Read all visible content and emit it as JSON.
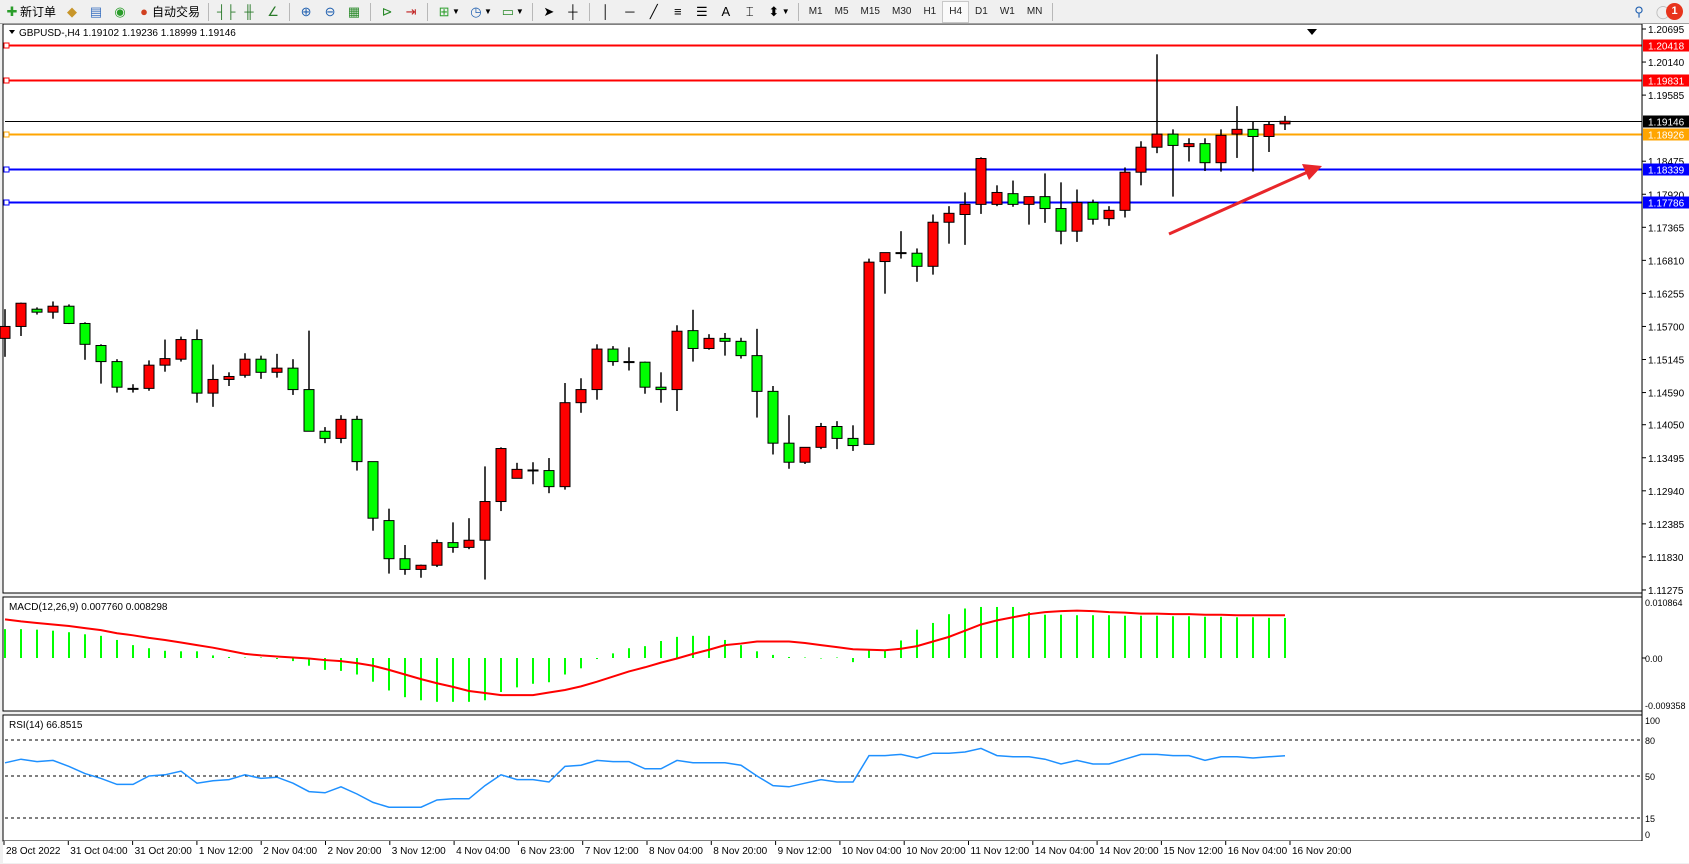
{
  "toolbar": {
    "new_order": "新订单",
    "auto_trading": "自动交易",
    "icons": [
      "new-order-icon",
      "market-watch-icon",
      "data-window-icon",
      "signals-icon",
      "auto-trading-icon",
      "bar-chart-icon",
      "candlestick-icon",
      "line-chart-icon",
      "zoom-in-icon",
      "zoom-out-icon",
      "tile-windows-icon",
      "chart-shift-icon",
      "autoscroll-icon",
      "indicators-icon",
      "periods-icon",
      "templates-icon",
      "cursor-icon",
      "crosshair-icon",
      "vertical-line-icon",
      "horizontal-line-icon",
      "trendline-icon",
      "fibonacci-icon",
      "fibo-fan-icon",
      "text-icon",
      "text-label-icon",
      "arrows-icon"
    ],
    "text_tool": "A",
    "timeframes": [
      "M1",
      "M5",
      "M15",
      "M30",
      "H1",
      "H4",
      "D1",
      "W1",
      "MN"
    ],
    "active_timeframe": "H4",
    "notification_count": "1"
  },
  "chart": {
    "header": "GBPUSD-,H4  1.19102 1.19236 1.18999 1.19146",
    "colors": {
      "bull": "#ff0000",
      "bear": "#00ff00",
      "outline": "#000000",
      "macd_hist": "#00ff00",
      "macd_signal": "#ff0000",
      "rsi": "#1e90ff"
    },
    "price_axis_labels": [
      "1.20695",
      "1.20140",
      "1.19585",
      "1.18475",
      "1.17920",
      "1.17365",
      "1.16810",
      "1.16255",
      "1.15700",
      "1.15145",
      "1.14590",
      "1.14050",
      "1.13495",
      "1.12940",
      "1.12385",
      "1.11830",
      "1.11275"
    ],
    "horizontal_lines": [
      {
        "price": "1.20418",
        "color": "#ff0000"
      },
      {
        "price": "1.19831",
        "color": "#ff0000"
      },
      {
        "price": "1.19146",
        "color": "#000000"
      },
      {
        "price": "1.18926",
        "color": "#ffa500"
      },
      {
        "price": "1.18339",
        "color": "#0000ff"
      },
      {
        "price": "1.17786",
        "color": "#0000ff"
      }
    ],
    "time_labels": [
      "28 Oct 2022",
      "31 Oct 04:00",
      "31 Oct 20:00",
      "1 Nov 12:00",
      "2 Nov 04:00",
      "2 Nov 20:00",
      "3 Nov 12:00",
      "4 Nov 04:00",
      "6 Nov 23:00",
      "7 Nov 12:00",
      "8 Nov 04:00",
      "8 Nov 20:00",
      "9 Nov 12:00",
      "10 Nov 04:00",
      "10 Nov 20:00",
      "11 Nov 12:00",
      "14 Nov 04:00",
      "14 Nov 20:00",
      "15 Nov 12:00",
      "16 Nov 04:00",
      "16 Nov 20:00"
    ]
  },
  "macd": {
    "label": "MACD(12,26,9) 0.007760 0.008298",
    "axis_labels": [
      "0.010864",
      "0.00",
      "-0.009358"
    ]
  },
  "rsi": {
    "label": "RSI(14) 66.8515",
    "axis_labels": [
      "100",
      "80",
      "50",
      "15",
      "0"
    ]
  },
  "chart_data": [
    {
      "type": "candlestick",
      "symbol": "GBPUSD-",
      "timeframe": "H4",
      "ylim": [
        1.11275,
        1.20695
      ],
      "ohlc": [
        [
          1.155,
          1.1599,
          1.1519,
          1.157
        ],
        [
          1.157,
          1.161,
          1.1554,
          1.1609
        ],
        [
          1.1599,
          1.1602,
          1.159,
          1.1594
        ],
        [
          1.1594,
          1.1612,
          1.1583,
          1.1604
        ],
        [
          1.1604,
          1.1607,
          1.1574,
          1.1575
        ],
        [
          1.1575,
          1.1577,
          1.1514,
          1.154
        ],
        [
          1.1538,
          1.154,
          1.1474,
          1.1511
        ],
        [
          1.1511,
          1.1515,
          1.1459,
          1.1468
        ],
        [
          1.1466,
          1.1473,
          1.1459,
          1.1466
        ],
        [
          1.1466,
          1.1513,
          1.1462,
          1.1505
        ],
        [
          1.1505,
          1.1548,
          1.1494,
          1.1516
        ],
        [
          1.1515,
          1.1553,
          1.1511,
          1.1548
        ],
        [
          1.1548,
          1.1565,
          1.1442,
          1.1458
        ],
        [
          1.1458,
          1.1506,
          1.1435,
          1.1481
        ],
        [
          1.1481,
          1.1493,
          1.147,
          1.1486
        ],
        [
          1.1488,
          1.1525,
          1.1484,
          1.1515
        ],
        [
          1.1515,
          1.1521,
          1.1482,
          1.1493
        ],
        [
          1.1493,
          1.1524,
          1.1484,
          1.15
        ],
        [
          1.15,
          1.1515,
          1.1455,
          1.1464
        ],
        [
          1.1464,
          1.1563,
          1.1394,
          1.1394
        ],
        [
          1.1394,
          1.1401,
          1.1374,
          1.1382
        ],
        [
          1.1382,
          1.1421,
          1.1374,
          1.1414
        ],
        [
          1.1414,
          1.142,
          1.1328,
          1.1343
        ],
        [
          1.1343,
          1.1343,
          1.1227,
          1.1248
        ],
        [
          1.1244,
          1.1264,
          1.1155,
          1.118
        ],
        [
          1.118,
          1.1203,
          1.1153,
          1.1162
        ],
        [
          1.1162,
          1.117,
          1.1148,
          1.1169
        ],
        [
          1.1169,
          1.1212,
          1.1166,
          1.1207
        ],
        [
          1.1207,
          1.1241,
          1.119,
          1.1199
        ],
        [
          1.1199,
          1.1248,
          1.1196,
          1.1211
        ],
        [
          1.1211,
          1.1335,
          1.1145,
          1.1276
        ],
        [
          1.1276,
          1.1367,
          1.126,
          1.1365
        ],
        [
          1.1315,
          1.1341,
          1.1315,
          1.133
        ],
        [
          1.1329,
          1.1342,
          1.1305,
          1.1329
        ],
        [
          1.1328,
          1.1349,
          1.129,
          1.1301
        ],
        [
          1.1301,
          1.1475,
          1.1296,
          1.1442
        ],
        [
          1.1442,
          1.1483,
          1.1425,
          1.1464
        ],
        [
          1.1464,
          1.154,
          1.1447,
          1.1532
        ],
        [
          1.1532,
          1.1537,
          1.1504,
          1.1511
        ],
        [
          1.1511,
          1.1535,
          1.1496,
          1.1511
        ],
        [
          1.151,
          1.1511,
          1.1457,
          1.1468
        ],
        [
          1.1468,
          1.1493,
          1.1442,
          1.1464
        ],
        [
          1.1464,
          1.1572,
          1.1428,
          1.1562
        ],
        [
          1.1563,
          1.1598,
          1.1511,
          1.1533
        ],
        [
          1.1533,
          1.1557,
          1.1531,
          1.155
        ],
        [
          1.155,
          1.1559,
          1.1521,
          1.1545
        ],
        [
          1.1545,
          1.1551,
          1.1516,
          1.1521
        ],
        [
          1.1521,
          1.1566,
          1.1417,
          1.1461
        ],
        [
          1.1461,
          1.147,
          1.1355,
          1.1374
        ],
        [
          1.1374,
          1.1421,
          1.1331,
          1.1342
        ],
        [
          1.1342,
          1.1367,
          1.1339,
          1.1367
        ],
        [
          1.1367,
          1.1408,
          1.1364,
          1.1402
        ],
        [
          1.1402,
          1.1411,
          1.1364,
          1.1382
        ],
        [
          1.1382,
          1.1404,
          1.1361,
          1.137
        ],
        [
          1.1372,
          1.1684,
          1.1372,
          1.1678
        ],
        [
          1.1679,
          1.1694,
          1.1625,
          1.1694
        ],
        [
          1.1694,
          1.173,
          1.1684,
          1.1694
        ],
        [
          1.1693,
          1.1701,
          1.1645,
          1.1671
        ],
        [
          1.1671,
          1.1758,
          1.1657,
          1.1745
        ],
        [
          1.1745,
          1.1772,
          1.1709,
          1.176
        ],
        [
          1.1758,
          1.1795,
          1.1707,
          1.1775
        ],
        [
          1.1775,
          1.1854,
          1.1759,
          1.1852
        ],
        [
          1.1775,
          1.1807,
          1.1772,
          1.1795
        ],
        [
          1.1793,
          1.1815,
          1.1771,
          1.1775
        ],
        [
          1.1775,
          1.1788,
          1.1741,
          1.1788
        ],
        [
          1.1788,
          1.1827,
          1.1744,
          1.1768
        ],
        [
          1.1768,
          1.1812,
          1.1708,
          1.173
        ],
        [
          1.173,
          1.18,
          1.1712,
          1.1778
        ],
        [
          1.1778,
          1.1783,
          1.1741,
          1.175
        ],
        [
          1.1751,
          1.1772,
          1.1739,
          1.1765
        ],
        [
          1.1765,
          1.1837,
          1.1753,
          1.1829
        ],
        [
          1.1829,
          1.1881,
          1.1807,
          1.1871
        ],
        [
          1.1871,
          1.2027,
          1.1861,
          1.1893
        ],
        [
          1.1893,
          1.1901,
          1.1788,
          1.1874
        ],
        [
          1.1872,
          1.1886,
          1.1847,
          1.1877
        ],
        [
          1.1877,
          1.1886,
          1.1831,
          1.1845
        ],
        [
          1.1845,
          1.1901,
          1.183,
          1.1891
        ],
        [
          1.1893,
          1.194,
          1.1853,
          1.1901
        ],
        [
          1.1901,
          1.1914,
          1.183,
          1.1889
        ],
        [
          1.1889,
          1.1914,
          1.1863,
          1.1909
        ],
        [
          1.19102,
          1.19236,
          1.18999,
          1.19146
        ]
      ]
    },
    {
      "type": "bar+line",
      "name": "MACD(12,26,9)",
      "ylim": [
        -0.009358,
        0.010864
      ],
      "histogram": [
        0.0056,
        0.0056,
        0.0055,
        0.0053,
        0.005,
        0.0046,
        0.0043,
        0.0035,
        0.0025,
        0.0019,
        0.0014,
        0.0013,
        0.0013,
        0.0005,
        0.0002,
        0.0001,
        0.0001,
        -0.0002,
        -0.0006,
        -0.0015,
        -0.0023,
        -0.0025,
        -0.0032,
        -0.0046,
        -0.0063,
        -0.0076,
        -0.0082,
        -0.0085,
        -0.0085,
        -0.0085,
        -0.0082,
        -0.0066,
        -0.0057,
        -0.005,
        -0.0047,
        -0.0032,
        -0.002,
        -0.0002,
        0.0009,
        0.0019,
        0.0023,
        0.0033,
        0.0041,
        0.0043,
        0.0043,
        0.0035,
        0.0025,
        0.0013,
        0.0006,
        0.0002,
        0.0001,
        -0.0001,
        0.0001,
        -0.0008,
        0.0015,
        0.0015,
        0.0034,
        0.0055,
        0.0068,
        0.0085,
        0.0096,
        0.0099,
        0.0099,
        0.0099,
        0.0089,
        0.0084,
        0.0084,
        0.0083,
        0.0083,
        0.0083,
        0.0082,
        0.0082,
        0.0082,
        0.0081,
        0.0081,
        0.008,
        0.008,
        0.0079,
        0.0079,
        0.0078,
        0.00776
      ],
      "signal": [
        0.0075,
        0.0071,
        0.0068,
        0.0065,
        0.0062,
        0.0058,
        0.0054,
        0.0048,
        0.0044,
        0.0039,
        0.0035,
        0.003,
        0.0025,
        0.002,
        0.0014,
        0.0008,
        0.0005,
        0.0003,
        0.0001,
        -0.0001,
        -0.0004,
        -0.0006,
        -0.001,
        -0.0015,
        -0.0023,
        -0.0032,
        -0.0041,
        -0.0049,
        -0.0056,
        -0.0064,
        -0.0068,
        -0.0072,
        -0.0072,
        -0.0072,
        -0.0067,
        -0.0062,
        -0.0055,
        -0.0046,
        -0.0036,
        -0.0026,
        -0.0018,
        -0.0009,
        -0.0001,
        0.0008,
        0.0016,
        0.0025,
        0.0028,
        0.0032,
        0.0032,
        0.0032,
        0.0029,
        0.0025,
        0.0021,
        0.0017,
        0.0016,
        0.0015,
        0.0018,
        0.0023,
        0.0032,
        0.0041,
        0.0053,
        0.0065,
        0.0073,
        0.0079,
        0.0085,
        0.0089,
        0.0091,
        0.0092,
        0.0091,
        0.0089,
        0.0088,
        0.0086,
        0.0086,
        0.0085,
        0.0085,
        0.0084,
        0.0084,
        0.0083,
        0.0083,
        0.0083,
        0.008298
      ]
    },
    {
      "type": "line",
      "name": "RSI(14)",
      "ylim": [
        0,
        100
      ],
      "levels": [
        80,
        50,
        15
      ],
      "values": [
        61,
        64,
        62,
        63,
        58,
        52,
        48,
        43,
        43,
        50,
        51,
        54,
        44,
        46,
        47,
        51,
        48,
        49,
        44,
        37,
        36,
        41,
        35,
        28,
        24,
        24,
        24,
        30,
        31,
        31,
        42,
        51,
        47,
        47,
        45,
        58,
        59,
        63,
        62,
        62,
        56,
        56,
        63,
        61,
        61,
        61,
        59,
        50,
        42,
        41,
        44,
        47,
        45,
        45,
        67,
        67,
        68,
        65,
        69,
        69,
        70,
        73,
        67,
        66,
        66,
        64,
        60,
        63,
        60,
        60,
        64,
        68,
        68,
        67,
        67,
        63,
        66,
        66,
        65,
        66,
        66.85
      ]
    }
  ]
}
